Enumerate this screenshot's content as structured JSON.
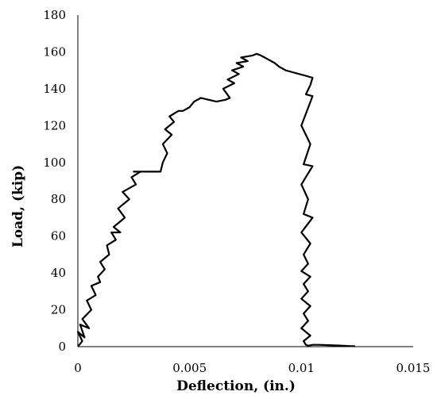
{
  "chart_data": {
    "type": "line",
    "title": "",
    "xlabel": "Deflection, (in.)",
    "ylabel": "Load, (kip)",
    "xlim": [
      0,
      0.015
    ],
    "ylim": [
      0,
      180
    ],
    "xticks": [
      0,
      0.005,
      0.01,
      0.015
    ],
    "xtick_labels": [
      "0",
      "0.005",
      "0.01",
      "0.015"
    ],
    "yticks": [
      0,
      20,
      40,
      60,
      80,
      100,
      120,
      140,
      160,
      180
    ],
    "ytick_labels": [
      "0",
      "20",
      "40",
      "60",
      "80",
      "100",
      "120",
      "140",
      "160",
      "180"
    ],
    "grid": false,
    "legend": "none",
    "line_color": "#000000",
    "series": [
      {
        "name": "",
        "x": [
          0.0,
          0.0002,
          0.0,
          0.0003,
          0.0001,
          0.0005,
          0.0002,
          0.0006,
          0.0004,
          0.0008,
          0.0006,
          0.001,
          0.0009,
          0.0012,
          0.001,
          0.0014,
          0.0013,
          0.0017,
          0.0015,
          0.0019,
          0.0016,
          0.0021,
          0.0018,
          0.0023,
          0.002,
          0.0026,
          0.0024,
          0.0028,
          0.0025,
          0.0031,
          0.0027,
          0.0037,
          0.0038,
          0.004,
          0.0038,
          0.0042,
          0.0039,
          0.0043,
          0.0041,
          0.0045,
          0.0047,
          0.005,
          0.0052,
          0.0055,
          0.0062,
          0.0066,
          0.0068,
          0.0065,
          0.007,
          0.0067,
          0.0072,
          0.0069,
          0.0074,
          0.0071,
          0.0076,
          0.0073,
          0.0078,
          0.008,
          0.0082,
          0.0085,
          0.0088,
          0.009,
          0.0093,
          0.0096,
          0.0099,
          0.0102,
          0.0105,
          0.0104,
          0.0102,
          0.0105,
          0.01,
          0.0104,
          0.0101,
          0.0105,
          0.01,
          0.0103,
          0.0101,
          0.0105,
          0.01,
          0.0104,
          0.0101,
          0.0103,
          0.01,
          0.0104,
          0.0101,
          0.0103,
          0.01,
          0.0104,
          0.0101,
          0.0103,
          0.01,
          0.0104,
          0.0101,
          0.0102,
          0.0103,
          0.0105,
          0.0108,
          0.0112,
          0.0117,
          0.0122,
          0.0124
        ],
        "y": [
          0,
          3,
          8,
          5,
          12,
          10,
          15,
          20,
          25,
          28,
          33,
          35,
          38,
          42,
          46,
          50,
          55,
          58,
          62,
          62,
          65,
          70,
          75,
          80,
          84,
          88,
          92,
          95,
          95,
          95,
          95,
          95,
          100,
          105,
          110,
          115,
          118,
          122,
          125,
          128,
          128,
          130,
          133,
          135,
          133,
          134,
          135,
          140,
          143,
          145,
          148,
          150,
          152,
          154,
          155,
          157,
          158,
          159,
          158,
          156,
          154,
          152,
          150,
          149,
          148,
          147,
          146,
          142,
          137,
          136,
          120,
          110,
          99,
          98,
          88,
          80,
          72,
          70,
          62,
          56,
          50,
          45,
          41,
          38,
          34,
          30,
          26,
          22,
          18,
          14,
          10,
          6,
          3,
          1,
          0.5,
          1,
          1,
          0.8,
          0.6,
          0.3,
          0.2
        ]
      }
    ]
  }
}
